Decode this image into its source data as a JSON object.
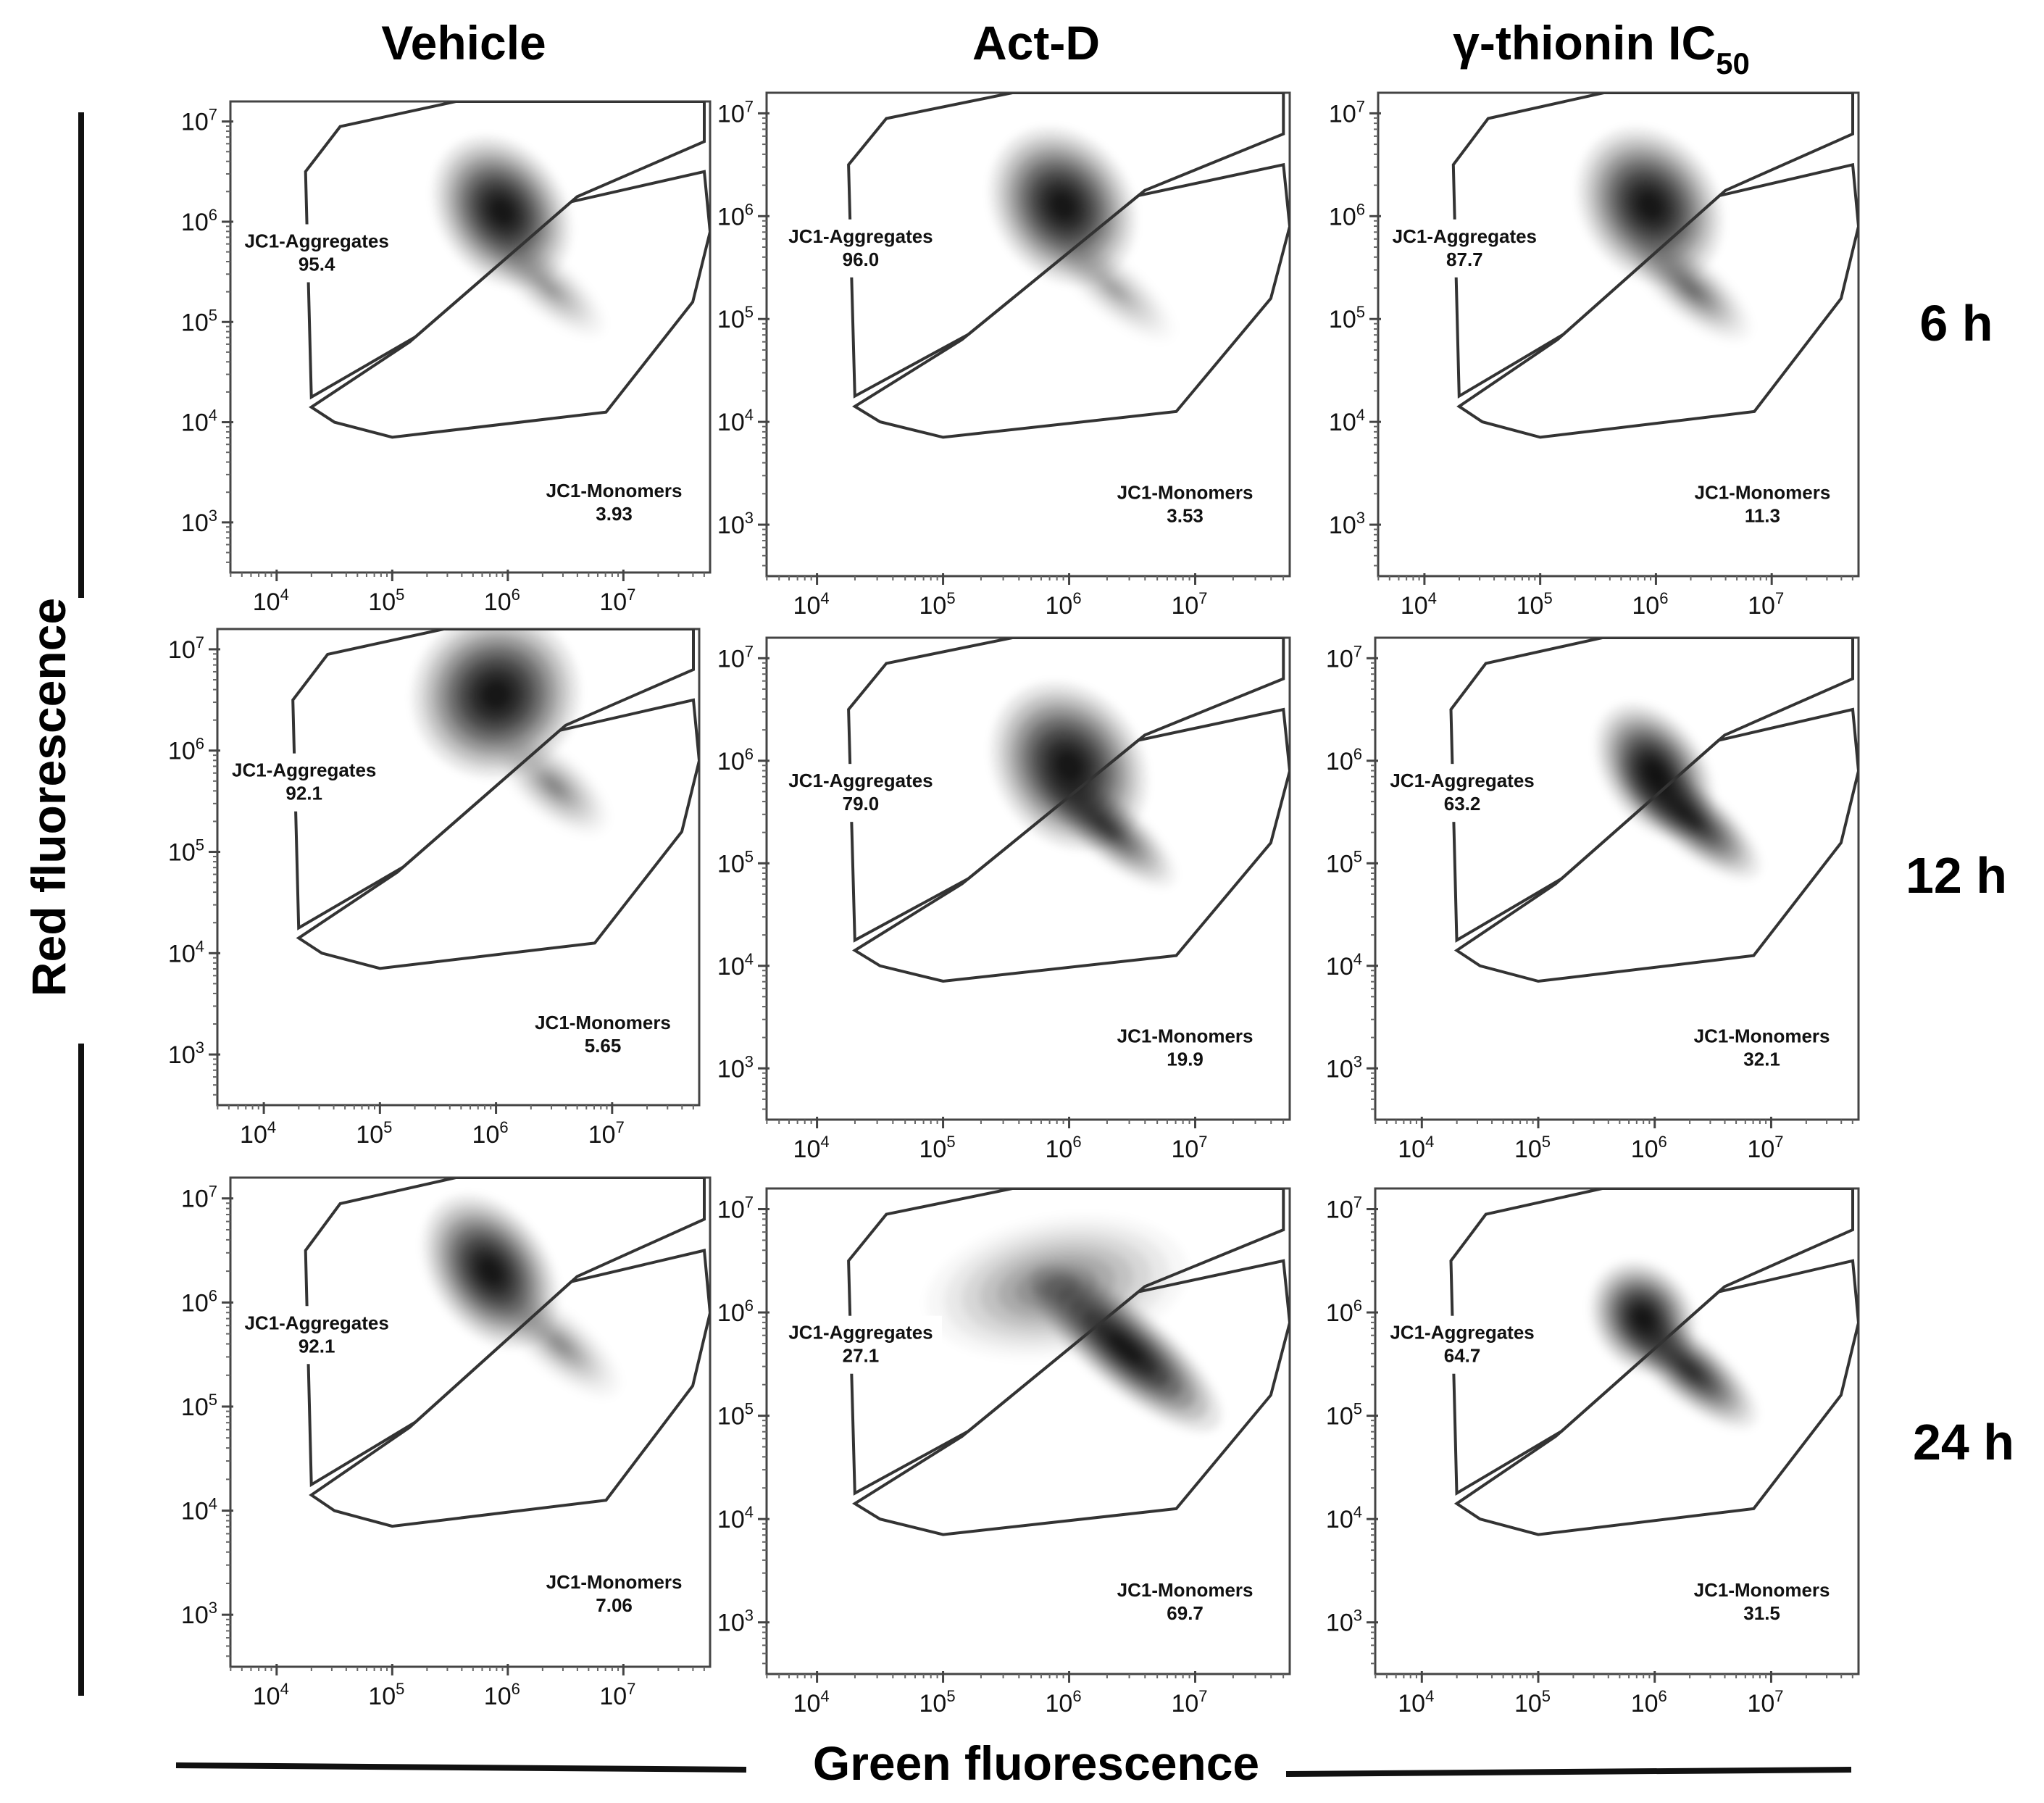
{
  "figure": {
    "column_headers": [
      "Vehicle",
      "Act-D",
      "γ-thionin IC"
    ],
    "column_header_subscript": "50",
    "row_labels": [
      "6 h",
      "12 h",
      "24 h"
    ],
    "x_axis_title": "Green fluorescence",
    "y_axis_title": "Red fluorescence"
  },
  "chart_data": {
    "type": "scatter",
    "subtype": "flow-cytometry density plot with polygon gates",
    "x_ticks": [
      {
        "base": "10",
        "exp": "4"
      },
      {
        "base": "10",
        "exp": "5"
      },
      {
        "base": "10",
        "exp": "6"
      },
      {
        "base": "10",
        "exp": "7"
      }
    ],
    "y_ticks": [
      {
        "base": "10",
        "exp": "7"
      },
      {
        "base": "10",
        "exp": "6"
      },
      {
        "base": "10",
        "exp": "5"
      },
      {
        "base": "10",
        "exp": "4"
      },
      {
        "base": "10",
        "exp": "3"
      }
    ],
    "xlim_log10": [
      3.6,
      7.75
    ],
    "ylim_log10": [
      2.5,
      7.2
    ],
    "gates": {
      "aggregates_label": "JC1-Aggregates",
      "monomers_label": "JC1-Monomers"
    },
    "panels": [
      {
        "row": "6 h",
        "column": "Vehicle",
        "aggregates_pct": "95.4",
        "monomers_pct": "3.93",
        "density": [
          {
            "x": 5.95,
            "y": 6.1,
            "sx": 0.28,
            "sy": 0.42,
            "a": -35,
            "w": 1.0
          },
          {
            "x": 6.35,
            "y": 5.35,
            "sx": 0.32,
            "sy": 0.14,
            "a": 40,
            "w": 0.25
          }
        ]
      },
      {
        "row": "6 h",
        "column": "Act-D",
        "aggregates_pct": "96.0",
        "monomers_pct": "3.53",
        "density": [
          {
            "x": 5.95,
            "y": 6.1,
            "sx": 0.28,
            "sy": 0.42,
            "a": -35,
            "w": 1.0
          },
          {
            "x": 6.35,
            "y": 5.3,
            "sx": 0.32,
            "sy": 0.14,
            "a": 40,
            "w": 0.22
          }
        ]
      },
      {
        "row": "6 h",
        "column": "γ-thionin IC50",
        "aggregates_pct": "87.7",
        "monomers_pct": "11.3",
        "density": [
          {
            "x": 5.95,
            "y": 6.1,
            "sx": 0.3,
            "sy": 0.42,
            "a": -35,
            "w": 1.0
          },
          {
            "x": 6.3,
            "y": 5.3,
            "sx": 0.34,
            "sy": 0.15,
            "a": 40,
            "w": 0.4
          }
        ]
      },
      {
        "row": "12 h",
        "column": "Vehicle",
        "aggregates_pct": "92.1",
        "monomers_pct": "5.65",
        "density": [
          {
            "x": 6.0,
            "y": 6.55,
            "sx": 0.38,
            "sy": 0.42,
            "a": -35,
            "w": 1.0
          },
          {
            "x": 6.5,
            "y": 5.65,
            "sx": 0.3,
            "sy": 0.16,
            "a": 40,
            "w": 0.3
          }
        ]
      },
      {
        "row": "12 h",
        "column": "Act-D",
        "aggregates_pct": "79.0",
        "monomers_pct": "19.9",
        "density": [
          {
            "x": 6.0,
            "y": 5.95,
            "sx": 0.3,
            "sy": 0.45,
            "a": -35,
            "w": 1.0
          },
          {
            "x": 6.3,
            "y": 5.35,
            "sx": 0.36,
            "sy": 0.15,
            "a": 40,
            "w": 0.6
          }
        ]
      },
      {
        "row": "12 h",
        "column": "γ-thionin IC50",
        "aggregates_pct": "63.2",
        "monomers_pct": "32.1",
        "density": [
          {
            "x": 6.0,
            "y": 5.9,
            "sx": 0.22,
            "sy": 0.38,
            "a": -35,
            "w": 1.0
          },
          {
            "x": 6.3,
            "y": 5.45,
            "sx": 0.4,
            "sy": 0.16,
            "a": 40,
            "w": 0.8
          }
        ]
      },
      {
        "row": "24 h",
        "column": "Vehicle",
        "aggregates_pct": "92.1",
        "monomers_pct": "7.06",
        "density": [
          {
            "x": 5.85,
            "y": 6.3,
            "sx": 0.26,
            "sy": 0.42,
            "a": -35,
            "w": 1.0
          },
          {
            "x": 6.45,
            "y": 5.6,
            "sx": 0.34,
            "sy": 0.15,
            "a": 40,
            "w": 0.28
          }
        ]
      },
      {
        "row": "24 h",
        "column": "Act-D",
        "aggregates_pct": "27.1",
        "monomers_pct": "69.7",
        "density": [
          {
            "x": 5.9,
            "y": 6.25,
            "sx": 0.55,
            "sy": 0.35,
            "a": -10,
            "w": 0.35
          },
          {
            "x": 6.45,
            "y": 5.65,
            "sx": 0.5,
            "sy": 0.2,
            "a": 40,
            "w": 1.0
          }
        ]
      },
      {
        "row": "24 h",
        "column": "γ-thionin IC50",
        "aggregates_pct": "64.7",
        "monomers_pct": "31.5",
        "density": [
          {
            "x": 5.9,
            "y": 5.95,
            "sx": 0.22,
            "sy": 0.3,
            "a": -35,
            "w": 1.0
          },
          {
            "x": 6.3,
            "y": 5.45,
            "sx": 0.38,
            "sy": 0.16,
            "a": 40,
            "w": 0.75
          }
        ]
      }
    ]
  }
}
